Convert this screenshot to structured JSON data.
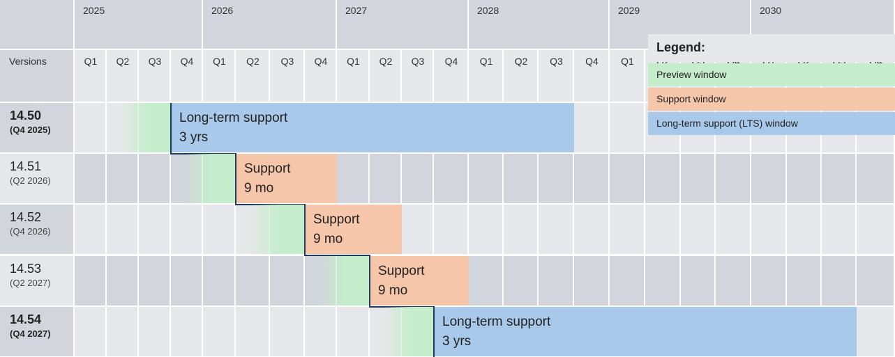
{
  "header": {
    "versions_label": "Versions",
    "years": [
      "2025",
      "2026",
      "2027",
      "2028",
      "2029",
      "2030"
    ],
    "quarters": [
      "Q1",
      "Q2",
      "Q3",
      "Q4",
      "Q1",
      "Q2",
      "Q3",
      "Q4",
      "Q1",
      "Q2",
      "Q3",
      "Q4",
      "Q1",
      "Q2",
      "Q3",
      "Q4",
      "Q1",
      "Q2",
      "Q3",
      "Q4",
      "Q1",
      "Q2",
      "Q3",
      "Q4"
    ]
  },
  "versions": [
    {
      "name": "14.50",
      "date": "(Q4 2025)",
      "bold": true,
      "preview": {
        "start_quarter": 1,
        "end_quarter": 3
      },
      "bar": {
        "kind": "lts",
        "line1": "Long-term support",
        "line2": "3 yrs",
        "start_quarter": 3,
        "end_quarter": 15
      }
    },
    {
      "name": "14.51",
      "date": "(Q2 2026)",
      "bold": false,
      "preview": {
        "start_quarter": 3,
        "end_quarter": 5
      },
      "bar": {
        "kind": "sup",
        "line1": "Support",
        "line2": "9 mo",
        "start_quarter": 5,
        "end_quarter": 8
      }
    },
    {
      "name": "14.52",
      "date": "(Q4 2026)",
      "bold": false,
      "preview": {
        "start_quarter": 5,
        "end_quarter": 7
      },
      "bar": {
        "kind": "sup",
        "line1": "Support",
        "line2": "9 mo",
        "start_quarter": 7,
        "end_quarter": 10
      }
    },
    {
      "name": "14.53",
      "date": "(Q2 2027)",
      "bold": false,
      "preview": {
        "start_quarter": 7,
        "end_quarter": 9
      },
      "bar": {
        "kind": "sup",
        "line1": "Support",
        "line2": "9 mo",
        "start_quarter": 9,
        "end_quarter": 12
      }
    },
    {
      "name": "14.54",
      "date": "(Q4 2027)",
      "bold": true,
      "preview": {
        "start_quarter": 9,
        "end_quarter": 11
      },
      "bar": {
        "kind": "lts",
        "line1": "Long-term support",
        "line2": "3 yrs",
        "start_quarter": 11,
        "end_quarter": 23
      }
    }
  ],
  "legend": {
    "title": "Legend:",
    "items": [
      {
        "label": "Preview window",
        "color": "#c5edcb"
      },
      {
        "label": "Support window",
        "color": "#f6c6ab"
      },
      {
        "label": "Long-term support (LTS) window",
        "color": "#a9c9ea"
      }
    ]
  },
  "colors": {
    "preview": "#c5edcb",
    "support": "#f6c6ab",
    "lts": "#a9c9ea",
    "step_line": "#223a5e",
    "header_bg": "#d2d5db",
    "row_light": "#e6e7ea",
    "row_dark": "#d2d5db"
  }
}
